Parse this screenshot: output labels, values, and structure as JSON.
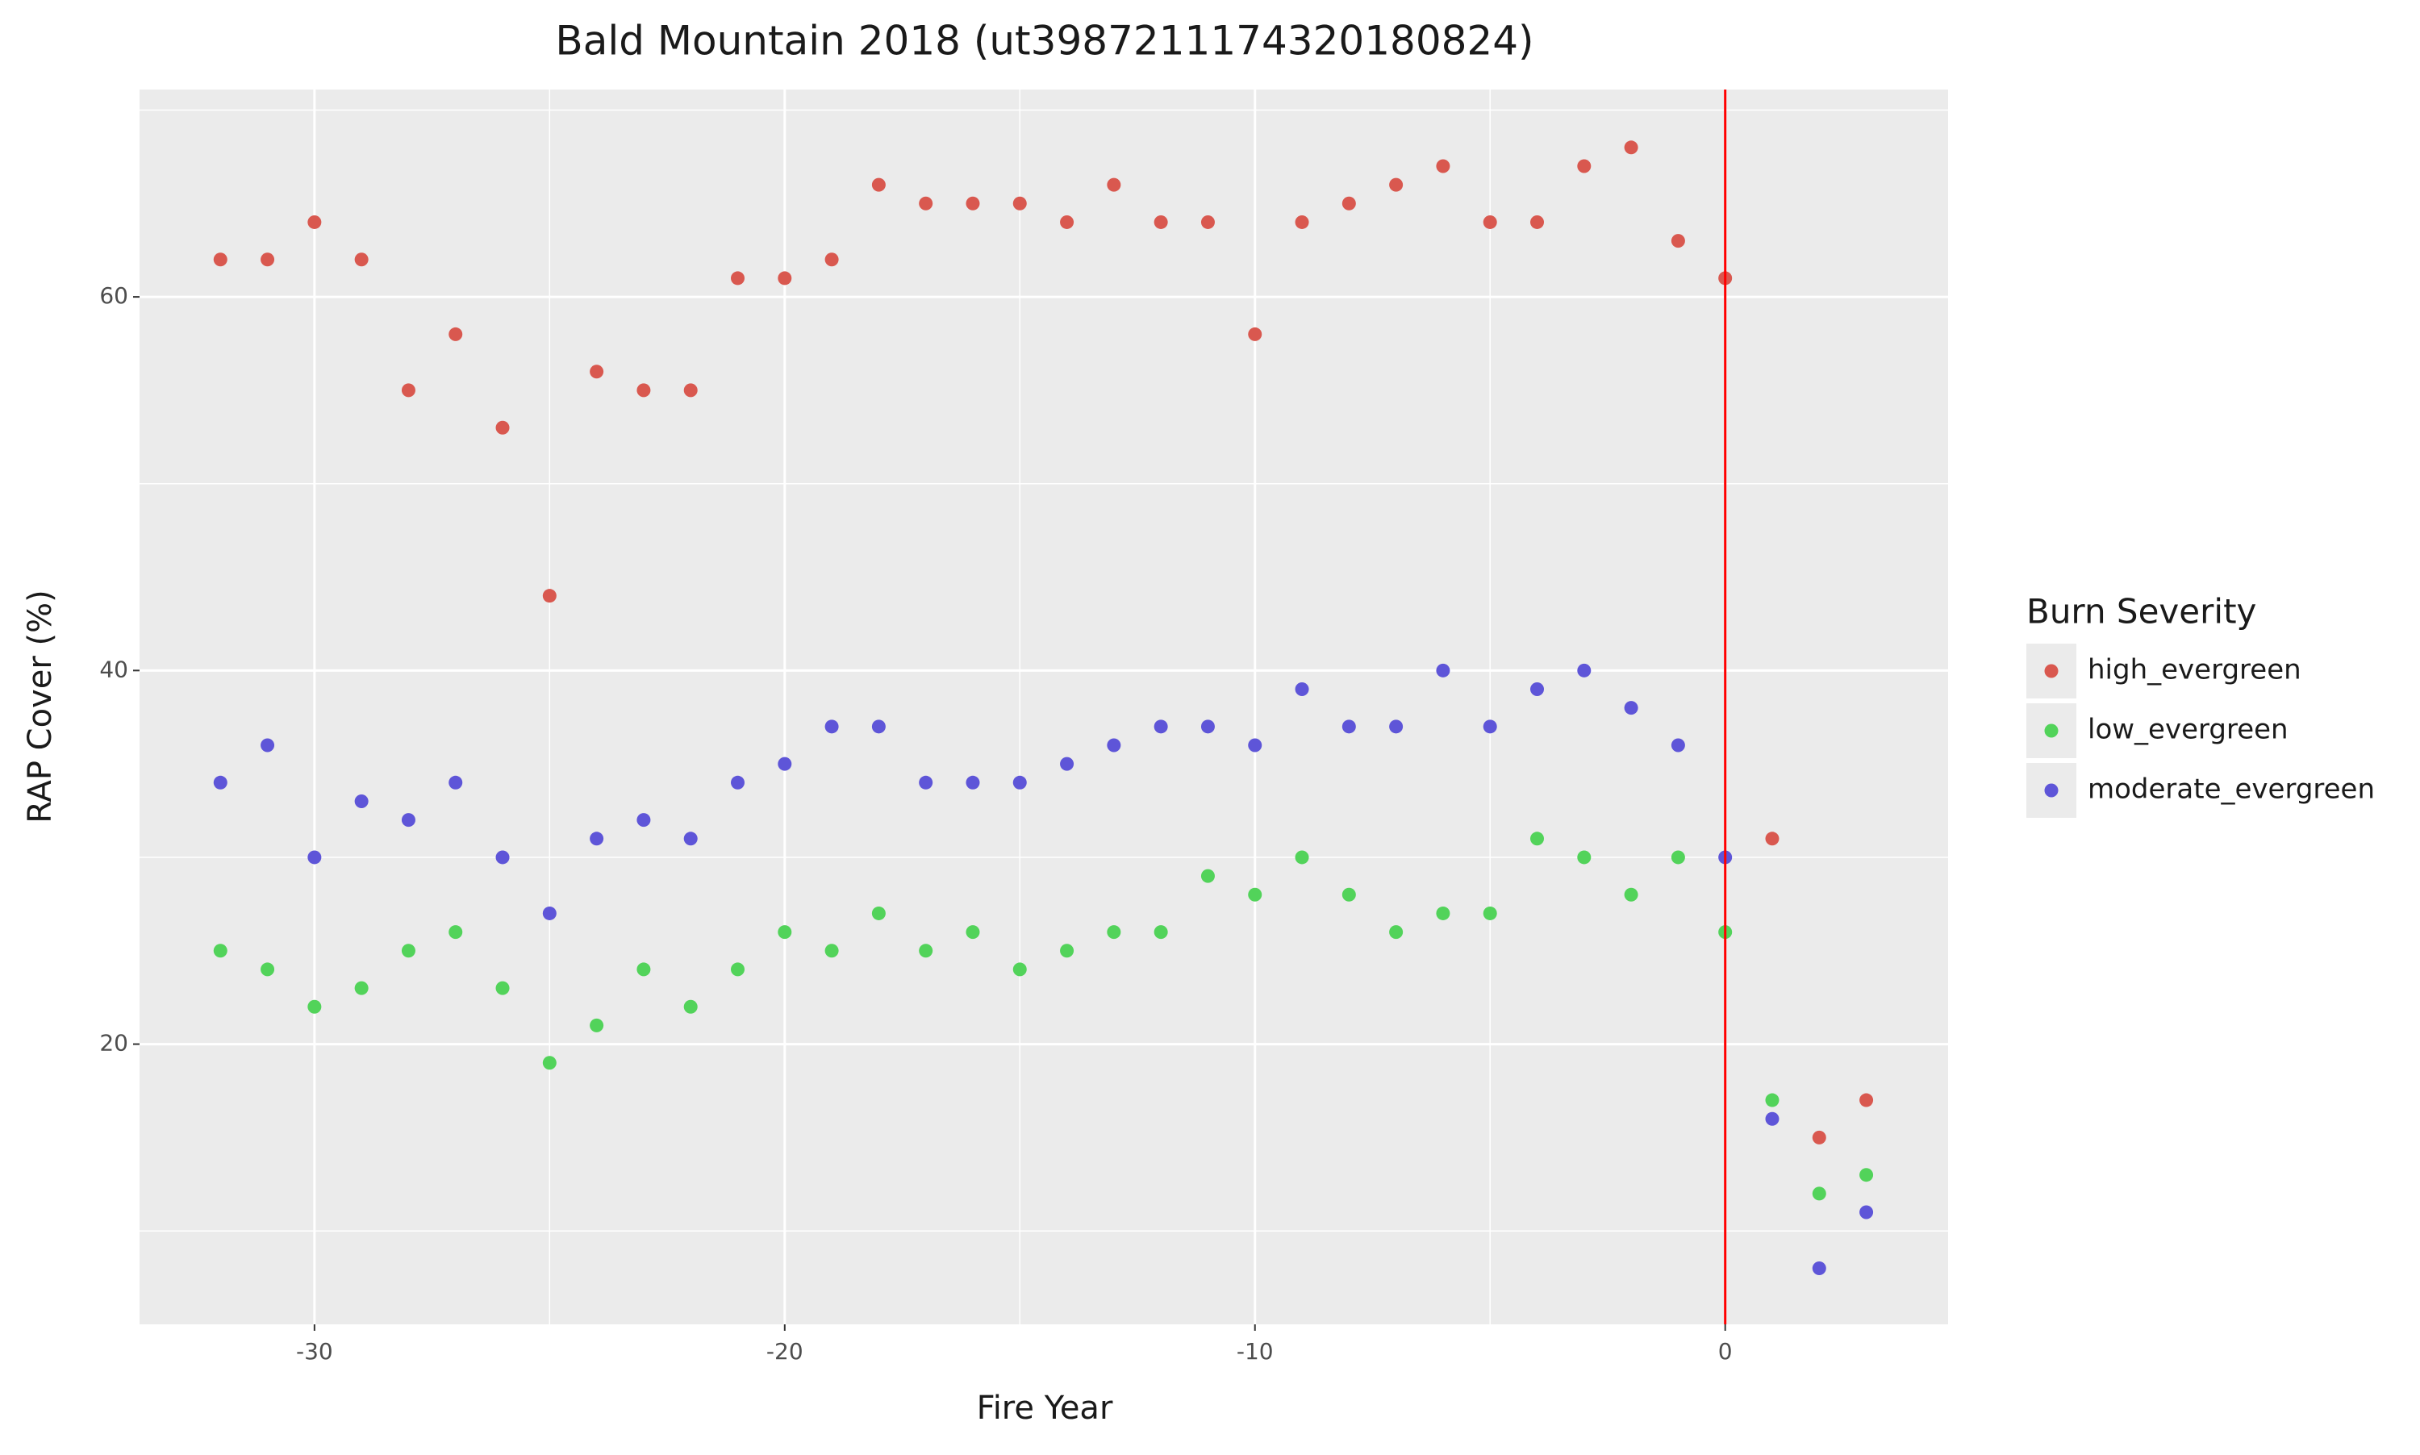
{
  "chart_data": {
    "type": "scatter",
    "title": "Bald Mountain 2018 (ut3987211174320180824)",
    "x_label": "Fire Year",
    "y_label": "RAP Cover (%)",
    "legend_title": "Burn Severity",
    "legend_position": "right",
    "x": [
      -32,
      -31,
      -30,
      -29,
      -28,
      -27,
      -26,
      -25,
      -24,
      -23,
      -22,
      -21,
      -20,
      -19,
      -18,
      -17,
      -16,
      -15,
      -14,
      -13,
      -12,
      -11,
      -10,
      -9,
      -8,
      -7,
      -6,
      -5,
      -4,
      -3,
      -2,
      -1,
      0,
      1,
      2,
      3
    ],
    "series": [
      {
        "name": "high_evergreen",
        "color": "#d9584f",
        "values": [
          62,
          62,
          64,
          62,
          55,
          58,
          53,
          44,
          56,
          55,
          55,
          61,
          61,
          62,
          66,
          65,
          65,
          65,
          64,
          66,
          64,
          64,
          58,
          64,
          65,
          66,
          67,
          64,
          64,
          67,
          68,
          63,
          61,
          31,
          15,
          17
        ]
      },
      {
        "name": "low_evergreen",
        "color": "#52d35a",
        "values": [
          25,
          24,
          22,
          23,
          25,
          26,
          23,
          19,
          21,
          24,
          22,
          24,
          26,
          25,
          27,
          25,
          26,
          24,
          25,
          26,
          26,
          29,
          28,
          30,
          28,
          26,
          27,
          27,
          31,
          30,
          28,
          30,
          26,
          17,
          12,
          13
        ]
      },
      {
        "name": "moderate_evergreen",
        "color": "#5e55d8",
        "values": [
          34,
          36,
          30,
          33,
          32,
          34,
          30,
          27,
          31,
          32,
          31,
          34,
          35,
          37,
          37,
          34,
          34,
          34,
          35,
          36,
          37,
          37,
          36,
          39,
          37,
          37,
          40,
          37,
          39,
          40,
          38,
          36,
          30,
          16,
          8,
          11
        ]
      }
    ],
    "xlim": [
      -33.72,
      4.74
    ],
    "ylim": [
      5.0,
      71.1
    ],
    "xticks": [
      -30,
      -20,
      -10,
      0
    ],
    "yticks": [
      20,
      40,
      60
    ],
    "x_minor_ticks": [
      -25,
      -15,
      -5
    ],
    "y_minor_ticks": [
      10,
      30,
      50,
      70
    ],
    "grid": true,
    "vline": {
      "x": 0,
      "color": "#ff0000"
    }
  }
}
